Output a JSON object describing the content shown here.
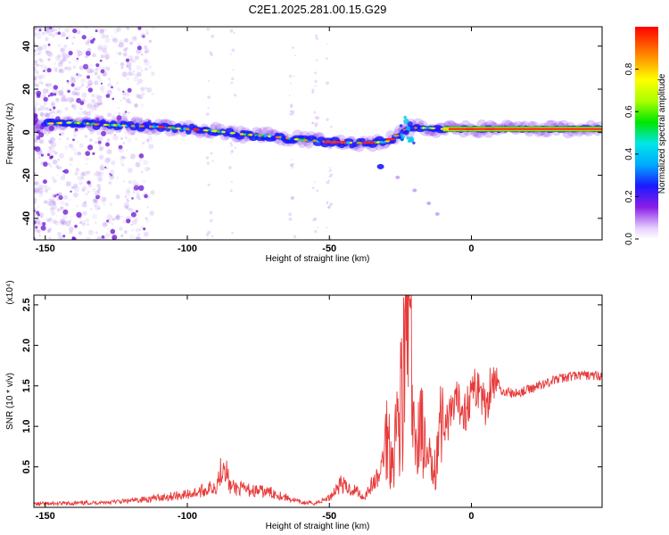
{
  "title": "C2E1.2025.281.00.15.G29",
  "chart_data": [
    {
      "type": "heatmap",
      "name": "spectrogram",
      "xlabel": "Height of straight line (km)",
      "ylabel": "Frequency (Hz)",
      "xlim": [
        -154,
        46
      ],
      "ylim": [
        -50,
        49
      ],
      "xticks": [
        -150,
        -100,
        -50,
        0
      ],
      "yticks": [
        -40,
        -20,
        0,
        20,
        40
      ],
      "colorbar": {
        "label": "Normalized spectral amplitude",
        "range": [
          0.0,
          1.0
        ],
        "ticks": [
          "0.0",
          "0.2",
          "0.4",
          "0.6",
          "0.8"
        ],
        "tick_values": [
          0.0,
          0.2,
          0.4,
          0.6,
          0.8
        ]
      },
      "main_track": [
        {
          "x": -150,
          "f": 4.0
        },
        {
          "x": -140,
          "f": 4.5
        },
        {
          "x": -130,
          "f": 3.5
        },
        {
          "x": -120,
          "f": 3.0
        },
        {
          "x": -110,
          "f": 2.5
        },
        {
          "x": -100,
          "f": 1.5
        },
        {
          "x": -90,
          "f": 0.5
        },
        {
          "x": -80,
          "f": -1.0
        },
        {
          "x": -70,
          "f": -2.0
        },
        {
          "x": -60,
          "f": -3.5
        },
        {
          "x": -50,
          "f": -4.5
        },
        {
          "x": -40,
          "f": -5.0
        },
        {
          "x": -30,
          "f": -4.5
        },
        {
          "x": -22,
          "f": 2.0
        },
        {
          "x": -15,
          "f": 2.0
        },
        {
          "x": -10,
          "f": 1.5
        },
        {
          "x": 0,
          "f": 1.5
        },
        {
          "x": 20,
          "f": 1.5
        },
        {
          "x": 46,
          "f": 1.5
        }
      ],
      "secondary_track": [
        {
          "x": -32,
          "f": -16
        },
        {
          "x": -26,
          "f": -21
        },
        {
          "x": -20,
          "f": -27
        },
        {
          "x": -15,
          "f": -33
        },
        {
          "x": -12,
          "f": -38
        }
      ]
    },
    {
      "type": "line",
      "name": "snr",
      "xlabel": "Height of straight line (km)",
      "ylabel": "SNR (10 * v/v)",
      "scale_label": "(x10⁴)",
      "xlim": [
        -154,
        46
      ],
      "ylim": [
        0,
        2.62
      ],
      "xticks": [
        -150,
        -100,
        -50,
        0
      ],
      "yticks": [
        0.5,
        1.0,
        1.5,
        2.0,
        2.5
      ],
      "ytick_labels": [
        "0.5",
        "1.0",
        "1.5",
        "2.0",
        "2.5"
      ],
      "color": "#e83a3a",
      "series": [
        {
          "name": "SNR",
          "x": [
            -154,
            -140,
            -130,
            -120,
            -110,
            -100,
            -95,
            -90,
            -87,
            -85,
            -80,
            -70,
            -60,
            -55,
            -50,
            -46,
            -44,
            -40,
            -38,
            -35,
            -32,
            -30,
            -28,
            -26,
            -24,
            -22,
            -21,
            -20,
            -18,
            -16,
            -14,
            -12,
            -10,
            -8,
            -5,
            -2,
            0,
            3,
            5,
            7,
            10,
            15,
            20,
            25,
            30,
            35,
            40,
            46
          ],
          "values": [
            0.04,
            0.05,
            0.06,
            0.08,
            0.12,
            0.16,
            0.2,
            0.26,
            0.58,
            0.25,
            0.22,
            0.18,
            0.06,
            0.05,
            0.12,
            0.3,
            0.24,
            0.2,
            0.12,
            0.28,
            0.4,
            0.95,
            0.65,
            1.05,
            1.5,
            2.6,
            1.45,
            0.6,
            1.2,
            0.55,
            0.5,
            0.8,
            1.1,
            1.05,
            1.3,
            1.2,
            1.42,
            1.5,
            1.2,
            1.6,
            1.45,
            1.4,
            1.45,
            1.52,
            1.58,
            1.62,
            1.63,
            1.62
          ]
        }
      ]
    }
  ]
}
